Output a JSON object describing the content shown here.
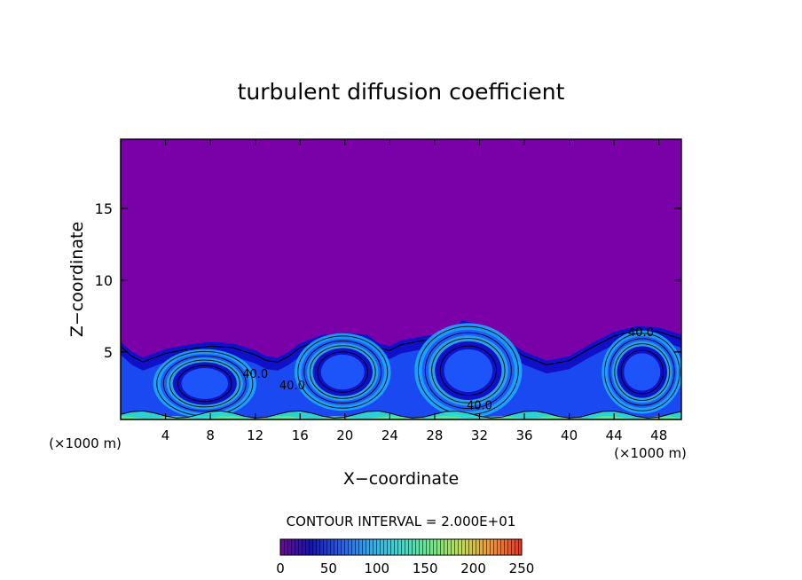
{
  "chart_data": {
    "type": "heatmap",
    "title": "turbulent diffusion coefficient",
    "xlabel": "X−coordinate",
    "ylabel": "Z−coordinate",
    "x_unit_left": "(×1000 m)",
    "x_unit_right": "(×1000 m)",
    "xlim": [
      0,
      50
    ],
    "ylim": [
      0.3,
      19.8
    ],
    "x_ticks": [
      4,
      8,
      12,
      16,
      20,
      24,
      28,
      32,
      36,
      40,
      44,
      48
    ],
    "y_ticks": [
      5,
      10,
      15
    ],
    "contour_interval_text": "CONTOUR INTERVAL = 2.000E+01",
    "contour_levels": [
      20,
      40,
      60,
      80,
      100,
      120,
      140,
      160,
      180,
      200,
      220,
      240
    ],
    "contour_labels": [
      {
        "text": "40.0",
        "x": 12.0,
        "y": 3.2
      },
      {
        "text": "40.0",
        "x": 15.3,
        "y": 2.4
      },
      {
        "text": "40.0",
        "x": 32.0,
        "y": 1.0
      },
      {
        "text": "40.0",
        "x": 46.4,
        "y": 6.1
      }
    ],
    "colorbar": {
      "min": 0,
      "max": 250,
      "tick_labels": [
        "0",
        "50",
        "100",
        "150",
        "200",
        "250"
      ],
      "tick_values": [
        0,
        50,
        100,
        150,
        200,
        250
      ]
    },
    "background_value": 0,
    "colormap": [
      "#7a00a8",
      "#1010c8",
      "#1f5cff",
      "#1fb0ff",
      "#30e0d0",
      "#60f080",
      "#c0e040",
      "#ff9020",
      "#ff2a10"
    ],
    "boundary_layer_top": [
      [
        0,
        5.7
      ],
      [
        1,
        5.0
      ],
      [
        2,
        4.6
      ],
      [
        3,
        4.9
      ],
      [
        4,
        5.2
      ],
      [
        6,
        5.5
      ],
      [
        8,
        5.7
      ],
      [
        10,
        5.6
      ],
      [
        12,
        5.1
      ],
      [
        13,
        4.7
      ],
      [
        14,
        4.6
      ],
      [
        15,
        5.0
      ],
      [
        16,
        5.6
      ],
      [
        18,
        6.2
      ],
      [
        20,
        6.3
      ],
      [
        22,
        6.2
      ],
      [
        23,
        5.6
      ],
      [
        24,
        5.4
      ],
      [
        25,
        5.8
      ],
      [
        27,
        6.1
      ],
      [
        29,
        6.3
      ],
      [
        30.5,
        7.2
      ],
      [
        32,
        6.9
      ],
      [
        34,
        6.0
      ],
      [
        36,
        5.0
      ],
      [
        38,
        4.4
      ],
      [
        40,
        4.7
      ],
      [
        42,
        5.6
      ],
      [
        44,
        6.4
      ],
      [
        46,
        6.8
      ],
      [
        48,
        6.7
      ],
      [
        50,
        6.2
      ]
    ],
    "eddies": [
      {
        "cx": 7.5,
        "cz": 2.8,
        "rx": 4.6,
        "rz": 2.4
      },
      {
        "cx": 19.8,
        "cz": 3.6,
        "rx": 4.3,
        "rz": 2.7
      },
      {
        "cx": 31.0,
        "cz": 3.7,
        "rx": 4.8,
        "rz": 3.3
      },
      {
        "cx": 46.5,
        "cz": 3.6,
        "rx": 3.6,
        "rz": 2.9
      }
    ]
  }
}
